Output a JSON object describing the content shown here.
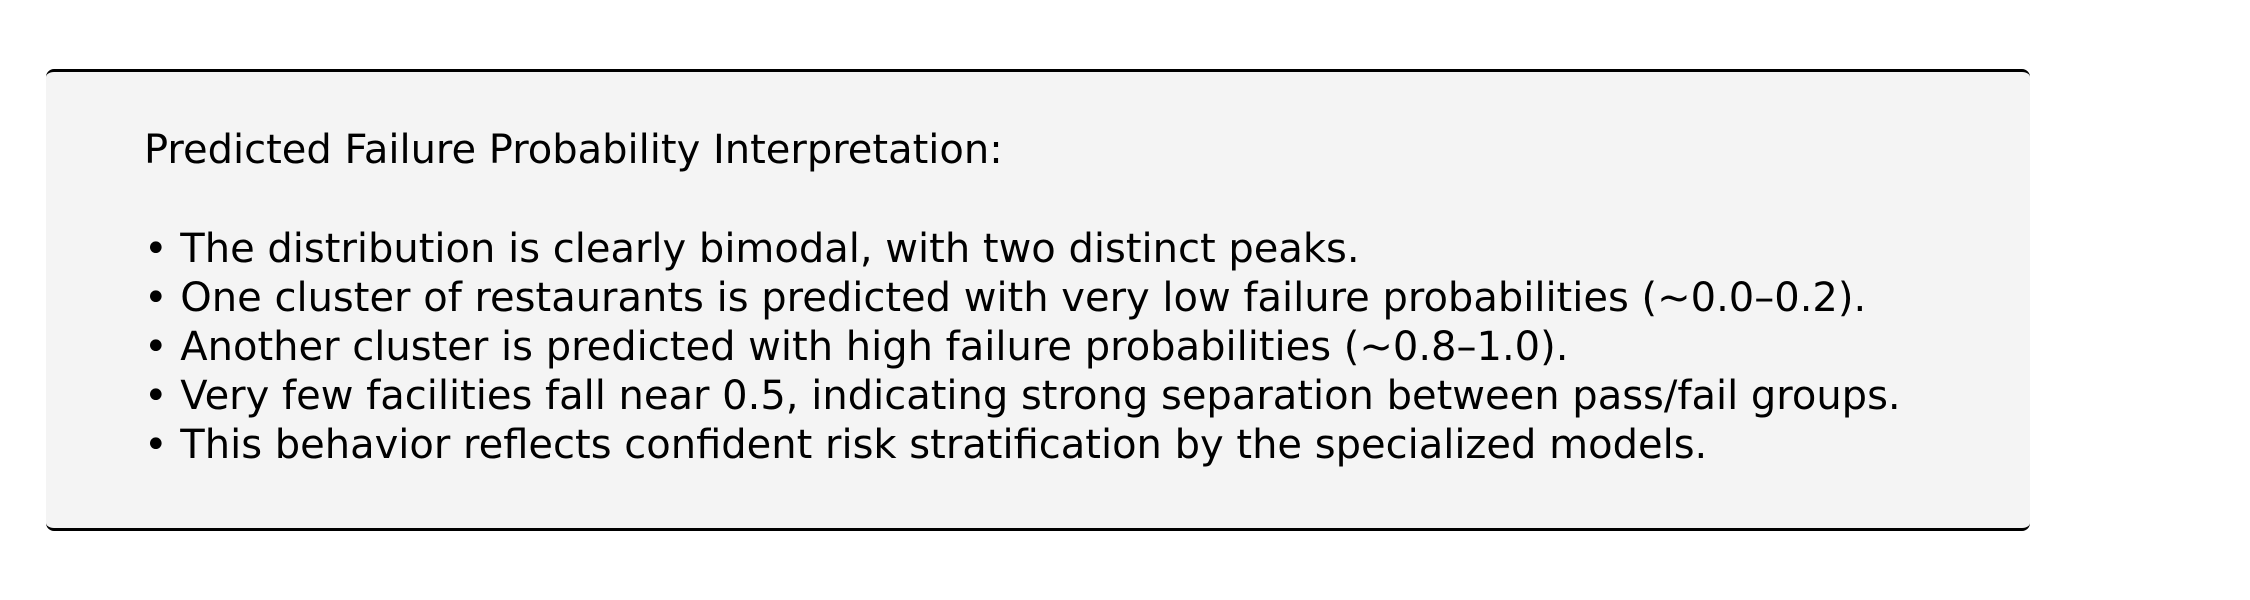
{
  "panel": {
    "title": "Predicted Failure Probability Interpretation:",
    "items": [
      "• The distribution is clearly bimodal, with two distinct peaks.",
      "• One cluster of restaurants is predicted with very low failure probabilities (~0.0–0.2).",
      "• Another cluster is predicted with high failure probabilities (~0.8–1.0).",
      "• Very few facilities fall near 0.5, indicating strong separation between pass/fail groups.",
      "• This behavior reflects confident risk stratification by the specialized models."
    ]
  }
}
